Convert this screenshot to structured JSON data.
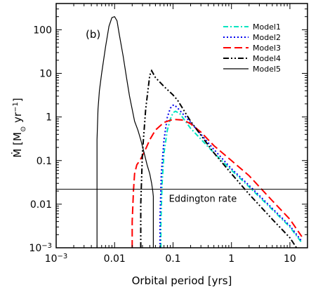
{
  "chart_data": {
    "type": "line",
    "panel_label": "(b)",
    "xlabel": "Orbital period [yrs]",
    "ylabel_main": "Ṁ [M",
    "ylabel_sub": "⊙",
    "ylabel_mid": " yr",
    "ylabel_sup": "−1",
    "ylabel_end": "]",
    "xscale": "log",
    "yscale": "log",
    "xlim": [
      0.001,
      20
    ],
    "ylim": [
      0.001,
      400
    ],
    "x_ticks": [
      {
        "value": 0.001,
        "label": "10",
        "sup": "−3"
      },
      {
        "value": 0.01,
        "label": "0.01",
        "sup": ""
      },
      {
        "value": 0.1,
        "label": "0.1",
        "sup": ""
      },
      {
        "value": 1,
        "label": "1",
        "sup": ""
      },
      {
        "value": 10,
        "label": "10",
        "sup": ""
      }
    ],
    "y_ticks": [
      {
        "value": 0.001,
        "label": "10",
        "sup": "−3"
      },
      {
        "value": 0.01,
        "label": "0.01",
        "sup": ""
      },
      {
        "value": 0.1,
        "label": "0.1",
        "sup": ""
      },
      {
        "value": 1,
        "label": "1",
        "sup": ""
      },
      {
        "value": 10,
        "label": "10",
        "sup": ""
      },
      {
        "value": 100,
        "label": "100",
        "sup": ""
      }
    ],
    "hline": {
      "y": 0.022,
      "label": "Eddington rate"
    },
    "legend_position": "top-right",
    "series": [
      {
        "name": "Model1",
        "color": "#00e5c0",
        "dash": "7,3,2,3",
        "x": [
          0.062,
          0.062,
          0.065,
          0.07,
          0.08,
          0.09,
          0.1,
          0.11,
          0.13,
          0.2,
          0.5,
          1,
          2,
          5,
          10,
          16
        ],
        "y": [
          0.001,
          0.004,
          0.03,
          0.15,
          0.5,
          0.9,
          1.25,
          1.35,
          1.2,
          0.55,
          0.15,
          0.06,
          0.025,
          0.0075,
          0.003,
          0.0013
        ]
      },
      {
        "name": "Model2",
        "color": "#0000ee",
        "dash": "2,3",
        "x": [
          0.06,
          0.06,
          0.063,
          0.07,
          0.08,
          0.09,
          0.1,
          0.105,
          0.12,
          0.2,
          0.5,
          1,
          2,
          5,
          10,
          16
        ],
        "y": [
          0.001,
          0.005,
          0.05,
          0.3,
          1.0,
          1.6,
          1.85,
          1.9,
          1.6,
          0.75,
          0.18,
          0.065,
          0.027,
          0.008,
          0.0032,
          0.0014
        ]
      },
      {
        "name": "Model3",
        "color": "#ff0000",
        "dash": "11,5",
        "x": [
          0.02,
          0.02,
          0.021,
          0.022,
          0.024,
          0.027,
          0.03,
          0.035,
          0.04,
          0.05,
          0.07,
          0.1,
          0.15,
          0.2,
          0.3,
          0.5,
          1,
          2,
          5,
          10,
          16
        ],
        "y": [
          0.001,
          0.004,
          0.02,
          0.05,
          0.08,
          0.1,
          0.13,
          0.2,
          0.3,
          0.5,
          0.75,
          0.88,
          0.85,
          0.7,
          0.45,
          0.22,
          0.1,
          0.045,
          0.012,
          0.0045,
          0.0018
        ]
      },
      {
        "name": "Model4",
        "color": "#000000",
        "dash": "8,3,2,3,2,3",
        "x": [
          0.028,
          0.028,
          0.03,
          0.034,
          0.04,
          0.043,
          0.05,
          0.07,
          0.1,
          0.12,
          0.2,
          0.5,
          1,
          2,
          5,
          10,
          13
        ],
        "y": [
          0.001,
          0.01,
          0.15,
          1.5,
          9,
          11.5,
          8,
          5,
          3.2,
          2.4,
          0.8,
          0.15,
          0.05,
          0.017,
          0.0045,
          0.0017,
          0.001
        ]
      },
      {
        "name": "Model5",
        "color": "#000000",
        "dash": "",
        "x": [
          0.005,
          0.005,
          0.0052,
          0.0055,
          0.006,
          0.007,
          0.008,
          0.009,
          0.01,
          0.011,
          0.012,
          0.014,
          0.016,
          0.018,
          0.02,
          0.022,
          0.025,
          0.028,
          0.032,
          0.036,
          0.04,
          0.043,
          0.045,
          0.046,
          0.046
        ],
        "y": [
          0.001,
          0.3,
          1.5,
          4,
          10,
          40,
          120,
          190,
          200,
          160,
          80,
          25,
          8,
          3,
          1.5,
          0.8,
          0.5,
          0.3,
          0.15,
          0.08,
          0.05,
          0.03,
          0.02,
          0.015,
          0.001
        ]
      }
    ]
  }
}
